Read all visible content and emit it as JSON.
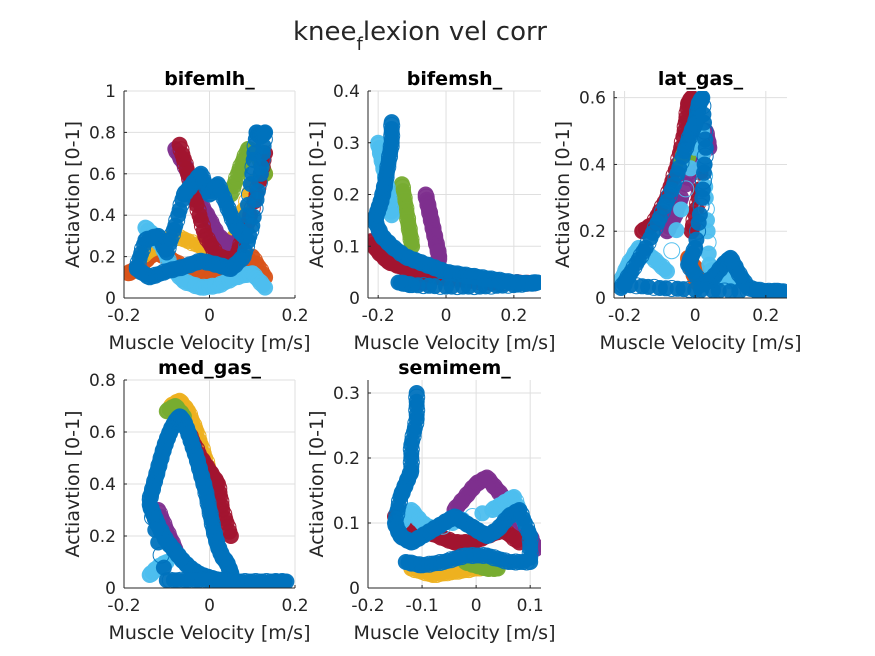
{
  "figure": {
    "title_main": "knee",
    "title_sub": "f",
    "title_rest": "lexion vel corr"
  },
  "colors": [
    "#0072BD",
    "#D95319",
    "#EDB120",
    "#7E2F8E",
    "#77AC30",
    "#4DBEEE",
    "#A2142F"
  ],
  "chart_data": [
    {
      "type": "scatter",
      "title": "bifemlh_",
      "xlabel": "Muscle Velocity [m/s]",
      "ylabel": "Actiavtion [0-1]",
      "xlim": [
        -0.2,
        0.2
      ],
      "ylim": [
        0,
        1
      ],
      "xticks": [
        -0.2,
        0,
        0.2
      ],
      "xtick_labels": [
        "-0.2",
        "0",
        "0.2"
      ],
      "yticks": [
        0,
        0.2,
        0.4,
        0.6,
        0.8,
        1
      ],
      "ytick_labels": [
        "0",
        "0.2",
        "0.4",
        "0.6",
        "0.8",
        "1"
      ],
      "grid": true,
      "series": [
        {
          "color": "#D95319",
          "x": [
            -0.19,
            -0.17,
            -0.15,
            -0.13,
            -0.1,
            -0.06,
            0.0,
            0.05,
            0.1,
            0.13
          ],
          "y": [
            0.12,
            0.14,
            0.18,
            0.22,
            0.2,
            0.15,
            0.1,
            0.12,
            0.2,
            0.1
          ]
        },
        {
          "color": "#EDB120",
          "x": [
            -0.16,
            -0.12,
            -0.08,
            -0.02,
            0.02,
            0.06,
            0.1,
            0.13
          ],
          "y": [
            0.2,
            0.26,
            0.3,
            0.25,
            0.2,
            0.3,
            0.55,
            0.6
          ]
        },
        {
          "color": "#7E2F8E",
          "x": [
            -0.08,
            -0.06,
            -0.04,
            -0.02,
            0.0,
            0.02,
            0.05,
            0.08
          ],
          "y": [
            0.72,
            0.65,
            0.55,
            0.45,
            0.38,
            0.3,
            0.25,
            0.3
          ]
        },
        {
          "color": "#77AC30",
          "x": [
            0.05,
            0.07,
            0.09,
            0.11,
            0.13
          ],
          "y": [
            0.5,
            0.62,
            0.72,
            0.7,
            0.6
          ]
        },
        {
          "color": "#A2142F",
          "x": [
            -0.07,
            -0.05,
            -0.03,
            -0.01,
            0.02,
            0.06,
            0.08,
            0.11,
            0.13
          ],
          "y": [
            0.74,
            0.6,
            0.45,
            0.3,
            0.2,
            0.18,
            0.3,
            0.5,
            0.7
          ]
        },
        {
          "color": "#4DBEEE",
          "x": [
            -0.15,
            -0.13,
            -0.11,
            -0.09,
            -0.06,
            -0.02,
            0.02,
            0.06,
            0.1,
            0.13
          ],
          "y": [
            0.34,
            0.3,
            0.25,
            0.15,
            0.08,
            0.05,
            0.06,
            0.1,
            0.12,
            0.05
          ]
        },
        {
          "color": "#0072BD",
          "x": [
            -0.17,
            -0.15,
            -0.12,
            -0.1,
            -0.08,
            -0.06,
            -0.04,
            -0.02,
            0.0,
            0.02,
            0.04,
            0.06,
            0.08,
            0.1,
            0.11,
            0.12,
            0.13,
            0.12,
            0.1,
            0.08,
            0.05,
            0.02,
            -0.02,
            -0.06,
            -0.1,
            -0.14,
            -0.17
          ],
          "y": [
            0.15,
            0.28,
            0.3,
            0.22,
            0.35,
            0.5,
            0.55,
            0.6,
            0.5,
            0.55,
            0.45,
            0.35,
            0.3,
            0.6,
            0.8,
            0.78,
            0.8,
            0.6,
            0.35,
            0.2,
            0.14,
            0.16,
            0.18,
            0.15,
            0.13,
            0.1,
            0.14
          ]
        }
      ]
    },
    {
      "type": "scatter",
      "title": "bifemsh_",
      "xlabel": "Muscle Velocity [m/s]",
      "ylabel": "Actiavtion [0-1]",
      "xlim": [
        -0.23,
        0.28
      ],
      "ylim": [
        0,
        0.4
      ],
      "xticks": [
        -0.2,
        0,
        0.2
      ],
      "xtick_labels": [
        "-0.2",
        "0",
        "0.2"
      ],
      "yticks": [
        0,
        0.1,
        0.2,
        0.3,
        0.4
      ],
      "ytick_labels": [
        "0",
        "0.1",
        "0.2",
        "0.3",
        "0.4"
      ],
      "grid": true,
      "series": [
        {
          "color": "#7E2F8E",
          "x": [
            -0.06,
            -0.05,
            -0.04,
            -0.03,
            -0.02,
            -0.03,
            -0.06,
            -0.1
          ],
          "y": [
            0.2,
            0.17,
            0.14,
            0.11,
            0.08,
            0.05,
            0.03,
            0.03
          ]
        },
        {
          "color": "#77AC30",
          "x": [
            -0.13,
            -0.12,
            -0.11,
            -0.1
          ],
          "y": [
            0.22,
            0.18,
            0.14,
            0.1
          ]
        },
        {
          "color": "#A2142F",
          "x": [
            -0.22,
            -0.2,
            -0.17,
            -0.13,
            -0.08,
            -0.02,
            0.05,
            0.12,
            0.2,
            0.26
          ],
          "y": [
            0.11,
            0.09,
            0.07,
            0.06,
            0.05,
            0.04,
            0.035,
            0.03,
            0.03,
            0.028
          ]
        },
        {
          "color": "#4DBEEE",
          "x": [
            -0.2,
            -0.19,
            -0.18,
            -0.17,
            -0.16
          ],
          "y": [
            0.3,
            0.27,
            0.24,
            0.2,
            0.16
          ]
        },
        {
          "color": "#0072BD",
          "x": [
            -0.16,
            -0.16,
            -0.17,
            -0.18,
            -0.19,
            -0.2,
            -0.21,
            -0.19,
            -0.16,
            -0.12,
            -0.08,
            -0.04,
            0.0,
            0.05,
            0.1,
            0.15,
            0.2,
            0.25,
            0.27,
            0.2,
            0.1,
            0.0,
            -0.1,
            -0.14
          ],
          "y": [
            0.34,
            0.3,
            0.26,
            0.22,
            0.19,
            0.17,
            0.15,
            0.12,
            0.1,
            0.08,
            0.07,
            0.06,
            0.05,
            0.045,
            0.04,
            0.035,
            0.03,
            0.028,
            0.03,
            0.025,
            0.022,
            0.022,
            0.025,
            0.03
          ]
        }
      ]
    },
    {
      "type": "scatter",
      "title": "lat_gas_",
      "xlabel": "Muscle Velocity [m/s]",
      "ylabel": "Actiavtion [0-1]",
      "xlim": [
        -0.23,
        0.26
      ],
      "ylim": [
        0,
        0.62
      ],
      "xticks": [
        -0.2,
        0,
        0.2
      ],
      "xtick_labels": [
        "-0.2",
        "0",
        "0.2"
      ],
      "yticks": [
        0,
        0.2,
        0.4,
        0.6
      ],
      "ytick_labels": [
        "0",
        "0.2",
        "0.4",
        "0.6"
      ],
      "grid": true,
      "series": [
        {
          "color": "#D95319",
          "x": [
            -0.02,
            -0.01,
            0.0,
            0.01,
            0.02,
            0.01,
            -0.01
          ],
          "y": [
            0.12,
            0.09,
            0.06,
            0.04,
            0.05,
            0.08,
            0.1
          ]
        },
        {
          "color": "#A2142F",
          "x": [
            -0.15,
            -0.12,
            -0.08,
            -0.05,
            -0.03,
            -0.02,
            -0.01,
            0.0,
            0.02,
            0.01,
            -0.01
          ],
          "y": [
            0.2,
            0.22,
            0.3,
            0.4,
            0.5,
            0.58,
            0.6,
            0.55,
            0.45,
            0.3,
            0.2
          ]
        },
        {
          "color": "#7E2F8E",
          "x": [
            -0.08,
            -0.06,
            -0.04,
            0.0,
            0.02,
            0.03,
            0.04
          ],
          "y": [
            0.2,
            0.24,
            0.3,
            0.42,
            0.5,
            0.5,
            0.45
          ]
        },
        {
          "color": "#77AC30",
          "x": [
            -0.04,
            -0.03,
            -0.02
          ],
          "y": [
            0.4,
            0.44,
            0.42
          ]
        },
        {
          "color": "#4DBEEE",
          "x": [
            -0.21,
            -0.19,
            -0.16,
            -0.12,
            -0.08,
            0.0,
            0.02,
            0.03,
            0.04,
            0.06,
            0.08,
            0.1
          ],
          "y": [
            0.05,
            0.1,
            0.15,
            0.12,
            0.08,
            0.45,
            0.5,
            0.3,
            0.1,
            0.05,
            0.08,
            0.05
          ]
        },
        {
          "color": "#0072BD",
          "x": [
            -0.21,
            -0.18,
            -0.14,
            -0.1,
            -0.06,
            -0.03,
            -0.01,
            0.0,
            0.01,
            0.02,
            0.03,
            0.02,
            0.0,
            -0.02,
            0.02,
            0.05,
            0.08,
            0.1,
            0.12,
            0.15,
            0.2,
            0.25,
            0.1,
            0.0,
            -0.1,
            -0.2
          ],
          "y": [
            0.03,
            0.08,
            0.15,
            0.24,
            0.34,
            0.44,
            0.5,
            0.52,
            0.58,
            0.6,
            0.45,
            0.3,
            0.15,
            0.1,
            0.04,
            0.06,
            0.1,
            0.12,
            0.08,
            0.03,
            0.02,
            0.02,
            0.02,
            0.025,
            0.03,
            0.04
          ]
        }
      ]
    },
    {
      "type": "scatter",
      "title": "med_gas_",
      "xlabel": "Muscle Velocity [m/s]",
      "ylabel": "Actiavtion [0-1]",
      "xlim": [
        -0.2,
        0.2
      ],
      "ylim": [
        0,
        0.8
      ],
      "xticks": [
        -0.2,
        0,
        0.2
      ],
      "xtick_labels": [
        "-0.2",
        "0",
        "0.2"
      ],
      "yticks": [
        0,
        0.2,
        0.4,
        0.6,
        0.8
      ],
      "ytick_labels": [
        "0",
        "0.2",
        "0.4",
        "0.6",
        "0.8"
      ],
      "grid": true,
      "series": [
        {
          "color": "#EDB120",
          "x": [
            -0.09,
            -0.07,
            -0.05,
            -0.03,
            -0.01,
            0.01
          ],
          "y": [
            0.7,
            0.72,
            0.68,
            0.6,
            0.5,
            0.4
          ]
        },
        {
          "color": "#7E2F8E",
          "x": [
            -0.12,
            -0.1,
            -0.08
          ],
          "y": [
            0.3,
            0.22,
            0.15
          ]
        },
        {
          "color": "#77AC30",
          "x": [
            -0.1,
            -0.08,
            -0.06
          ],
          "y": [
            0.68,
            0.7,
            0.66
          ]
        },
        {
          "color": "#A2142F",
          "x": [
            -0.05,
            -0.02,
            0.0,
            0.02,
            0.03,
            0.05
          ],
          "y": [
            0.6,
            0.5,
            0.45,
            0.4,
            0.3,
            0.2
          ]
        },
        {
          "color": "#4DBEEE",
          "x": [
            -0.14,
            -0.12,
            -0.1
          ],
          "y": [
            0.05,
            0.08,
            0.1
          ]
        },
        {
          "color": "#0072BD",
          "x": [
            -0.14,
            -0.13,
            -0.12,
            -0.11,
            -0.1,
            -0.09,
            -0.08,
            -0.07,
            -0.06,
            -0.05,
            -0.04,
            -0.03,
            -0.02,
            -0.01,
            0.0,
            0.01,
            0.02,
            0.03,
            0.04,
            0.05,
            0.05,
            0.04,
            0.02,
            0.0,
            -0.02,
            -0.04,
            -0.06,
            -0.08,
            -0.1,
            -0.12,
            -0.13,
            -0.14,
            -0.1,
            -0.05,
            0.0,
            0.05,
            0.1,
            0.15,
            0.18
          ],
          "y": [
            0.34,
            0.4,
            0.46,
            0.52,
            0.57,
            0.61,
            0.64,
            0.66,
            0.64,
            0.6,
            0.55,
            0.5,
            0.44,
            0.38,
            0.3,
            0.22,
            0.16,
            0.12,
            0.1,
            0.06,
            0.03,
            0.03,
            0.03,
            0.04,
            0.05,
            0.07,
            0.1,
            0.14,
            0.18,
            0.24,
            0.28,
            0.32,
            0.03,
            0.03,
            0.03,
            0.025,
            0.025,
            0.025,
            0.025
          ]
        }
      ]
    },
    {
      "type": "scatter",
      "title": "semimem_",
      "xlabel": "Muscle Velocity [m/s]",
      "ylabel": "Actiavtion [0-1]",
      "xlim": [
        -0.2,
        0.12
      ],
      "ylim": [
        0,
        0.32
      ],
      "xticks": [
        -0.2,
        -0.1,
        0,
        0.1
      ],
      "xtick_labels": [
        "-0.2",
        "-0.1",
        "0",
        "0.1"
      ],
      "yticks": [
        0,
        0.1,
        0.2,
        0.3
      ],
      "ytick_labels": [
        "0",
        "0.1",
        "0.2",
        "0.3"
      ],
      "grid": true,
      "series": [
        {
          "color": "#EDB120",
          "x": [
            -0.12,
            -0.08,
            -0.04,
            0.0,
            0.04
          ],
          "y": [
            0.03,
            0.02,
            0.025,
            0.03,
            0.035
          ]
        },
        {
          "color": "#7E2F8E",
          "x": [
            -0.04,
            -0.02,
            0.0,
            0.02,
            0.04,
            0.06,
            0.08,
            0.1,
            0.11
          ],
          "y": [
            0.12,
            0.14,
            0.16,
            0.17,
            0.15,
            0.13,
            0.1,
            0.08,
            0.06
          ]
        },
        {
          "color": "#77AC30",
          "x": [
            -0.02,
            0.0,
            0.02,
            0.04
          ],
          "y": [
            0.04,
            0.035,
            0.03,
            0.03
          ]
        },
        {
          "color": "#A2142F",
          "x": [
            -0.15,
            -0.13,
            -0.1,
            -0.07,
            -0.04,
            -0.01,
            0.02,
            0.05,
            0.08
          ],
          "y": [
            0.11,
            0.1,
            0.09,
            0.08,
            0.07,
            0.07,
            0.08,
            0.09,
            0.07
          ]
        },
        {
          "color": "#4DBEEE",
          "x": [
            -0.14,
            -0.12,
            -0.1,
            -0.08,
            0.03,
            0.05,
            0.07,
            0.09
          ],
          "y": [
            0.1,
            0.12,
            0.1,
            0.09,
            0.12,
            0.13,
            0.14,
            0.1
          ]
        },
        {
          "color": "#0072BD",
          "x": [
            -0.11,
            -0.11,
            -0.12,
            -0.12,
            -0.13,
            -0.14,
            -0.15,
            -0.14,
            -0.12,
            -0.1,
            -0.08,
            -0.06,
            -0.04,
            -0.02,
            0.0,
            0.02,
            0.04,
            0.06,
            0.08,
            0.1,
            0.1,
            0.06,
            0.02,
            -0.02,
            -0.06,
            -0.1,
            -0.13
          ],
          "y": [
            0.3,
            0.26,
            0.22,
            0.18,
            0.16,
            0.14,
            0.1,
            0.08,
            0.07,
            0.08,
            0.09,
            0.1,
            0.11,
            0.1,
            0.09,
            0.08,
            0.09,
            0.11,
            0.12,
            0.08,
            0.04,
            0.04,
            0.05,
            0.05,
            0.04,
            0.035,
            0.04
          ]
        }
      ]
    }
  ]
}
